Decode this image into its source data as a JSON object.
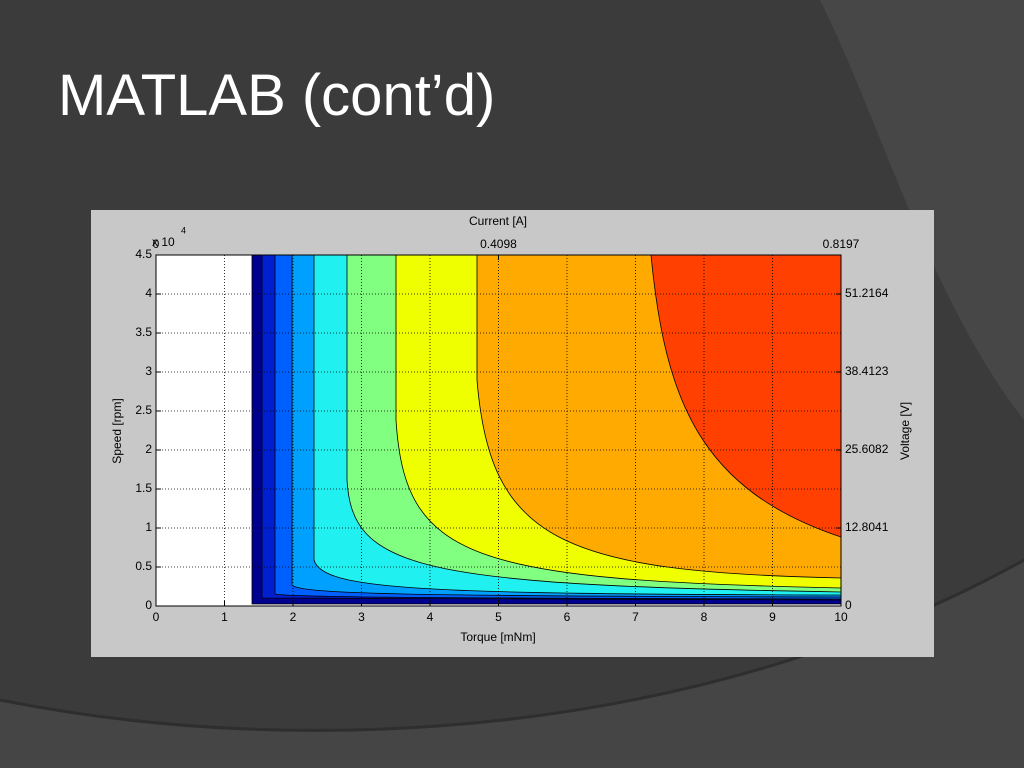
{
  "slide_title": "MATLAB (cont’d)",
  "chart_data": {
    "type": "contour",
    "x_label": "Torque [mNm]",
    "y_label": "Speed [rpm]",
    "x2_label": "Current [A]",
    "y2_label": "Voltage [V]",
    "y_multiplier": "x 10",
    "y_multiplier_exponent": 4,
    "xlim": [
      0,
      10
    ],
    "xticks": [
      0,
      1,
      2,
      3,
      4,
      5,
      6,
      7,
      8,
      9,
      10
    ],
    "ylim": [
      0,
      4.5
    ],
    "yticks": [
      0,
      0.5,
      1,
      1.5,
      2,
      2.5,
      3,
      3.5,
      4,
      4.5
    ],
    "x2lim": [
      0,
      0.8197
    ],
    "x2ticks": [
      0,
      0.4098,
      0.8197
    ],
    "y2lim": [
      0,
      57.6185
    ],
    "y2ticks": [
      0,
      12.8041,
      25.6082,
      38.4123,
      51.2164
    ],
    "grid": true
  }
}
